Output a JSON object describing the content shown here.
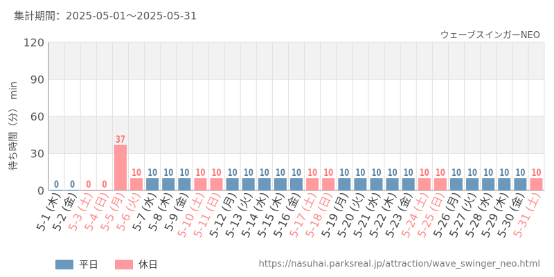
{
  "header": {
    "period_label": "集計期間：",
    "period_range": "2025-05-01～2025-05-31",
    "attraction_name": "ウェーブスインガーNEO"
  },
  "footer": {
    "url": "https://nasuhai.parksreal.jp/attraction/wave_swinger_neo.html"
  },
  "legend": [
    {
      "label": "平日",
      "color": "#6b98bd"
    },
    {
      "label": "休日",
      "color": "#ff9a9e"
    }
  ],
  "colors": {
    "weekday_bar": "#6b98bd",
    "holiday_bar": "#ff9a9e",
    "weekday_text": "#5b7fa6",
    "holiday_text": "#ff7575",
    "weekday_label": "#444444",
    "holiday_label": "#ff8a8a",
    "band": "#f2f2f2",
    "grid": "#e0e0e0",
    "axis": "#888888"
  },
  "chart_data": {
    "type": "bar",
    "ylabel": "待ち時間（分） min",
    "ylim": [
      0,
      120
    ],
    "yticks": [
      0,
      30,
      60,
      90,
      120
    ],
    "grid": true,
    "categories": [
      "5-1 (木)",
      "5-2 (金)",
      "5-3 (土)",
      "5-4 (日)",
      "5-5 (月)",
      "5-6 (火)",
      "5-7 (水)",
      "5-8 (木)",
      "5-9 (金)",
      "5-10 (土)",
      "5-11 (日)",
      "5-12 (月)",
      "5-13 (火)",
      "5-14 (水)",
      "5-15 (木)",
      "5-16 (金)",
      "5-17 (土)",
      "5-18 (日)",
      "5-19 (月)",
      "5-20 (火)",
      "5-21 (水)",
      "5-22 (木)",
      "5-23 (金)",
      "5-24 (土)",
      "5-25 (日)",
      "5-26 (月)",
      "5-27 (火)",
      "5-28 (水)",
      "5-29 (木)",
      "5-30 (金)",
      "5-31 (土)"
    ],
    "values": [
      0,
      0,
      0,
      0,
      37,
      10,
      10,
      10,
      10,
      10,
      10,
      10,
      10,
      10,
      10,
      10,
      10,
      10,
      10,
      10,
      10,
      10,
      10,
      10,
      10,
      10,
      10,
      10,
      10,
      10,
      10
    ],
    "holiday": [
      false,
      false,
      true,
      true,
      true,
      true,
      false,
      false,
      false,
      true,
      true,
      false,
      false,
      false,
      false,
      false,
      true,
      true,
      false,
      false,
      false,
      false,
      false,
      true,
      true,
      false,
      false,
      false,
      false,
      false,
      true
    ],
    "series": [
      {
        "name": "平日"
      },
      {
        "name": "休日"
      }
    ]
  }
}
